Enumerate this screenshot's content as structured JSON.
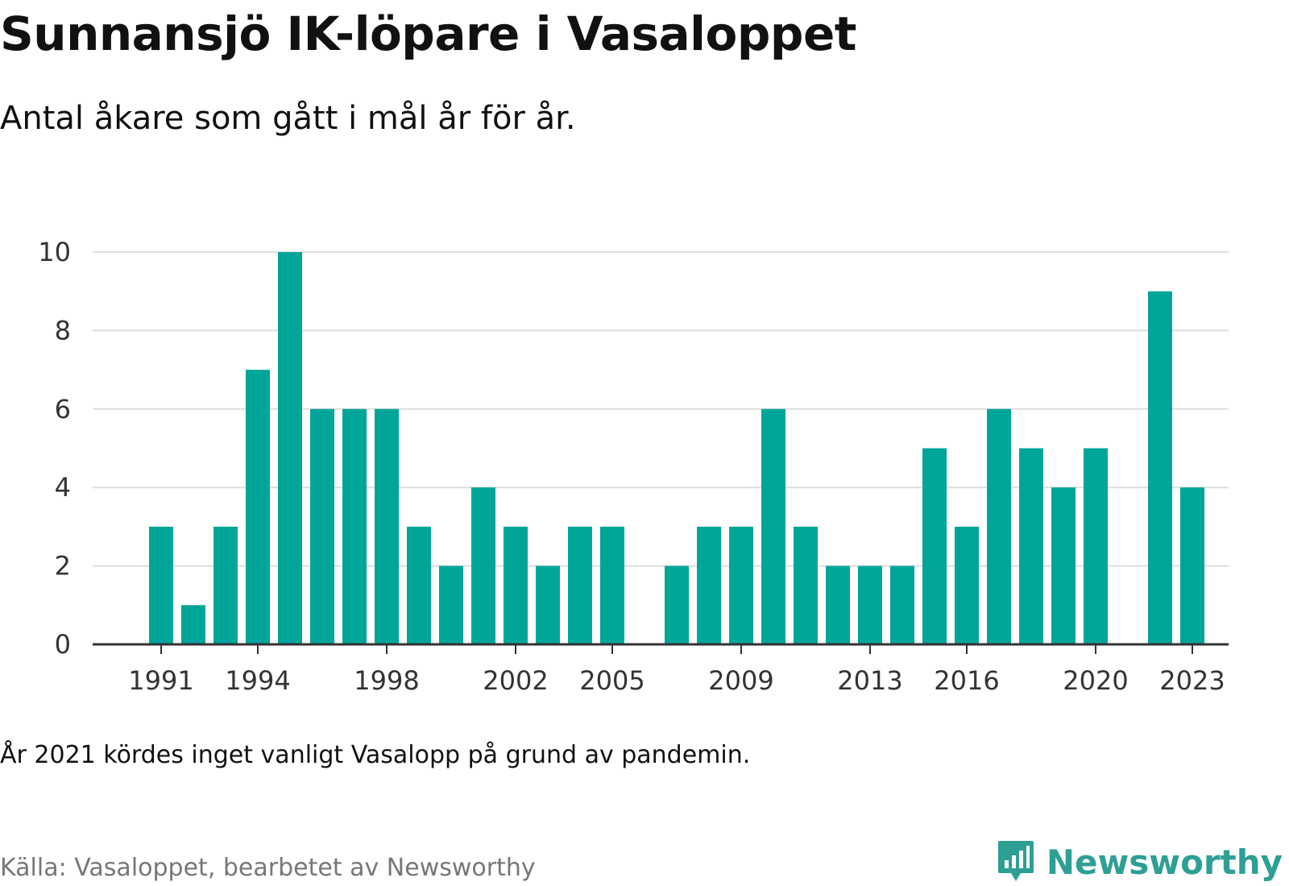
{
  "title": "Sunnansjö IK-löpare i Vasaloppet",
  "subtitle": "Antal åkare som gått i mål år för år.",
  "note": "År 2021 kördes inget vanligt Vasalopp på grund av pandemin.",
  "source": "Källa: Vasaloppet, bearbetet av Newsworthy",
  "brand": {
    "name": "Newsworthy",
    "logo_icon": "chart-speech-bubble-icon"
  },
  "colors": {
    "bar": "#00a59a",
    "grid": "#dddddd",
    "axis": "#333333",
    "tick_text": "#333333",
    "brand": "#2e9f95"
  },
  "chart_data": {
    "type": "bar",
    "title": "Sunnansjö IK-löpare i Vasaloppet",
    "subtitle": "Antal åkare som gått i mål år för år.",
    "xlabel": "",
    "ylabel": "",
    "x": [
      1991,
      1992,
      1993,
      1994,
      1995,
      1996,
      1997,
      1998,
      1999,
      2000,
      2001,
      2002,
      2003,
      2004,
      2005,
      2006,
      2007,
      2008,
      2009,
      2010,
      2011,
      2012,
      2013,
      2014,
      2015,
      2016,
      2017,
      2018,
      2019,
      2020,
      2021,
      2022,
      2023
    ],
    "values": [
      3,
      1,
      3,
      7,
      10,
      6,
      6,
      6,
      3,
      2,
      4,
      3,
      2,
      3,
      3,
      0,
      2,
      3,
      3,
      6,
      3,
      2,
      2,
      2,
      5,
      3,
      6,
      5,
      4,
      5,
      0,
      9,
      4
    ],
    "x_tick_labels": [
      1991,
      1994,
      1998,
      2002,
      2005,
      2009,
      2013,
      2016,
      2020,
      2023
    ],
    "y_ticks": [
      0,
      2,
      4,
      6,
      8,
      10
    ],
    "ylim": [
      0,
      10
    ],
    "grid": true,
    "legend": "none"
  }
}
